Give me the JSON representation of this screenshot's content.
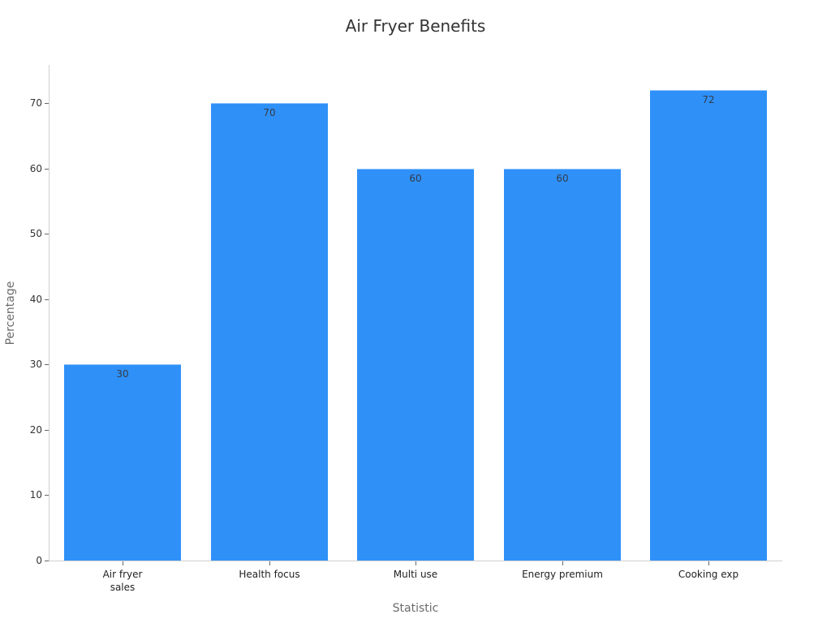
{
  "chart_data": {
    "type": "bar",
    "title": "Air Fryer Benefits",
    "xlabel": "Statistic",
    "ylabel": "Percentage",
    "categories": [
      "Air fryer sales",
      "Health focus",
      "Multi use",
      "Energy premium",
      "Cooking exp"
    ],
    "category_display": [
      "Air fryer\nsales",
      "Health focus",
      "Multi use",
      "Energy premium",
      "Cooking exp"
    ],
    "values": [
      30,
      70,
      60,
      60,
      72
    ],
    "data_labels": [
      "30",
      "70",
      "60",
      "60",
      "72"
    ],
    "ylim": [
      0,
      75
    ],
    "yticks": [
      0,
      10,
      20,
      30,
      40,
      50,
      60,
      70
    ],
    "grid": false,
    "legend": null,
    "bar_color": "#2f91f8"
  },
  "labels": {
    "title": "Air Fryer Benefits",
    "xlabel": "Statistic",
    "ylabel": "Percentage",
    "yticks": [
      "0",
      "10",
      "20",
      "30",
      "40",
      "50",
      "60",
      "70"
    ],
    "categories": [
      "Air fryer\nsales",
      "Health focus",
      "Multi use",
      "Energy premium",
      "Cooking exp"
    ],
    "values": [
      "30",
      "70",
      "60",
      "60",
      "72"
    ]
  }
}
